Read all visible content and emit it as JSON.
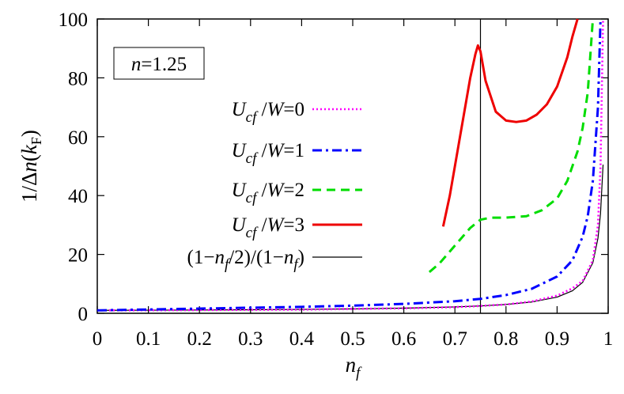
{
  "chart_data": {
    "type": "line",
    "xlabel": "n_f",
    "ylabel": "1/Δn(k_F)",
    "xlim": [
      0,
      1
    ],
    "ylim": [
      0,
      100
    ],
    "x_ticks": [
      "0",
      "0.1",
      "0.2",
      "0.3",
      "0.4",
      "0.5",
      "0.6",
      "0.7",
      "0.8",
      "0.9",
      "1"
    ],
    "y_ticks": [
      "0",
      "20",
      "40",
      "60",
      "80",
      "100"
    ],
    "annotation": "n=1.25",
    "vertical_line_x": 0.75,
    "legend_position": "center-left",
    "grid": false,
    "series": [
      {
        "name": "U_cf/W=0",
        "color": "#ff00ff",
        "dash": "dotted",
        "x": [
          0.0,
          0.1,
          0.2,
          0.3,
          0.4,
          0.5,
          0.6,
          0.7,
          0.75,
          0.8,
          0.85,
          0.9,
          0.93,
          0.95,
          0.97,
          0.98,
          0.985,
          0.99
        ],
        "y": [
          1.0,
          1.05,
          1.11,
          1.18,
          1.25,
          1.5,
          1.7,
          2.1,
          2.5,
          3.0,
          4.0,
          6.0,
          8.5,
          11.0,
          18.0,
          30.0,
          50.0,
          100.0
        ]
      },
      {
        "name": "U_cf/W=1",
        "color": "#0000ff",
        "dash": "dashdot",
        "x": [
          0.0,
          0.1,
          0.2,
          0.3,
          0.4,
          0.5,
          0.6,
          0.7,
          0.75,
          0.8,
          0.85,
          0.9,
          0.93,
          0.95,
          0.96,
          0.97,
          0.98,
          0.985
        ],
        "y": [
          1.0,
          1.3,
          1.6,
          1.9,
          2.2,
          2.6,
          3.2,
          4.1,
          4.9,
          6.2,
          8.3,
          12.5,
          18.0,
          26.0,
          33.0,
          45.0,
          70.0,
          100.0
        ]
      },
      {
        "name": "U_cf/W=2",
        "color": "#00dd00",
        "dash": "dashed",
        "x": [
          0.65,
          0.67,
          0.69,
          0.71,
          0.73,
          0.75,
          0.77,
          0.8,
          0.84,
          0.87,
          0.9,
          0.92,
          0.94,
          0.95,
          0.96,
          0.97
        ],
        "y": [
          14.0,
          17.0,
          21.0,
          25.0,
          29.0,
          31.8,
          32.5,
          32.5,
          33.0,
          35.0,
          39.0,
          45.0,
          55.0,
          63.0,
          75.0,
          100.0
        ]
      },
      {
        "name": "U_cf/W=3",
        "color": "#ee0000",
        "dash": "solid",
        "x": [
          0.677,
          0.69,
          0.71,
          0.73,
          0.74,
          0.745,
          0.75,
          0.76,
          0.78,
          0.8,
          0.82,
          0.84,
          0.86,
          0.88,
          0.9,
          0.92,
          0.93,
          0.94
        ],
        "y": [
          29.5,
          40.0,
          60.0,
          80.0,
          88.0,
          91.0,
          89.0,
          79.0,
          68.5,
          65.5,
          65.0,
          65.5,
          67.5,
          71.0,
          77.0,
          87.0,
          94.0,
          100.0
        ]
      },
      {
        "name": "(1−n_f/2)/(1−n_f)",
        "color": "#000000",
        "dash": "solid-thin",
        "x": [
          0.0,
          0.1,
          0.2,
          0.3,
          0.4,
          0.5,
          0.6,
          0.7,
          0.75,
          0.8,
          0.85,
          0.9,
          0.93,
          0.95,
          0.97,
          0.98,
          0.985,
          0.99
        ],
        "y": [
          1.0,
          1.06,
          1.12,
          1.21,
          1.33,
          1.5,
          1.75,
          2.17,
          2.5,
          3.0,
          3.83,
          5.5,
          7.64,
          10.5,
          17.17,
          25.5,
          33.83,
          50.5
        ]
      }
    ]
  }
}
